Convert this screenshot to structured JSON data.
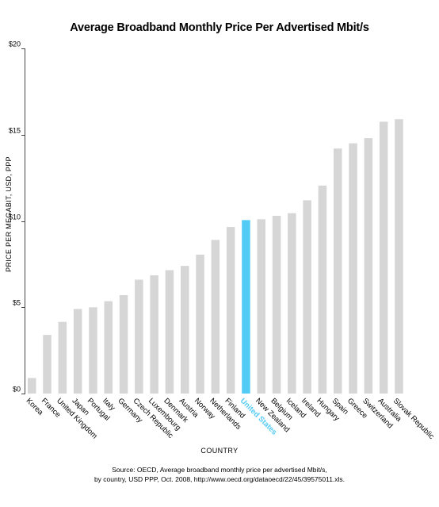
{
  "chart_data": {
    "type": "bar",
    "title": "Average Broadband Monthly Price Per Advertised Mbit/s",
    "xlabel": "COUNTRY",
    "ylabel": "PRICE PER MEGABIT, USD, PPP",
    "ylim": [
      0,
      20
    ],
    "yticks": [
      {
        "value": 0,
        "label": "$0"
      },
      {
        "value": 5,
        "label": "$5"
      },
      {
        "value": 10,
        "label": "$10"
      },
      {
        "value": 15,
        "label": "$15"
      },
      {
        "value": 20,
        "label": "$20"
      }
    ],
    "categories": [
      "Korea",
      "France",
      "United Kingdom",
      "Japan",
      "Portugal",
      "Italy",
      "Germany",
      "Czech Republic",
      "Luxembourg",
      "Denmark",
      "Austria",
      "Norway",
      "Netherlands",
      "Finland",
      "United States",
      "New Zealand",
      "Belgium",
      "Iceland",
      "Ireland",
      "Hungary",
      "Spain",
      "Greece",
      "Switzerland",
      "Australia",
      "Slovak Republic"
    ],
    "values": [
      0.9,
      3.4,
      4.15,
      4.9,
      5.0,
      5.35,
      5.7,
      6.6,
      6.85,
      7.15,
      7.4,
      8.05,
      8.9,
      9.65,
      10.05,
      10.1,
      10.3,
      10.45,
      11.2,
      12.05,
      14.2,
      14.5,
      14.8,
      15.75,
      15.9
    ],
    "highlight": "United States",
    "grid": false
  },
  "colors": {
    "bar": "#d6d6d6",
    "highlight": "#52cbf5",
    "axis": "#444444",
    "text": "#000000"
  },
  "source": {
    "line1": "Source: OECD, Average broadband monthly price per advertised Mbit/s,",
    "line2": "by country, USD PPP, Oct. 2008, http://www.oecd.org/dataoecd/22/45/39575011.xls."
  }
}
